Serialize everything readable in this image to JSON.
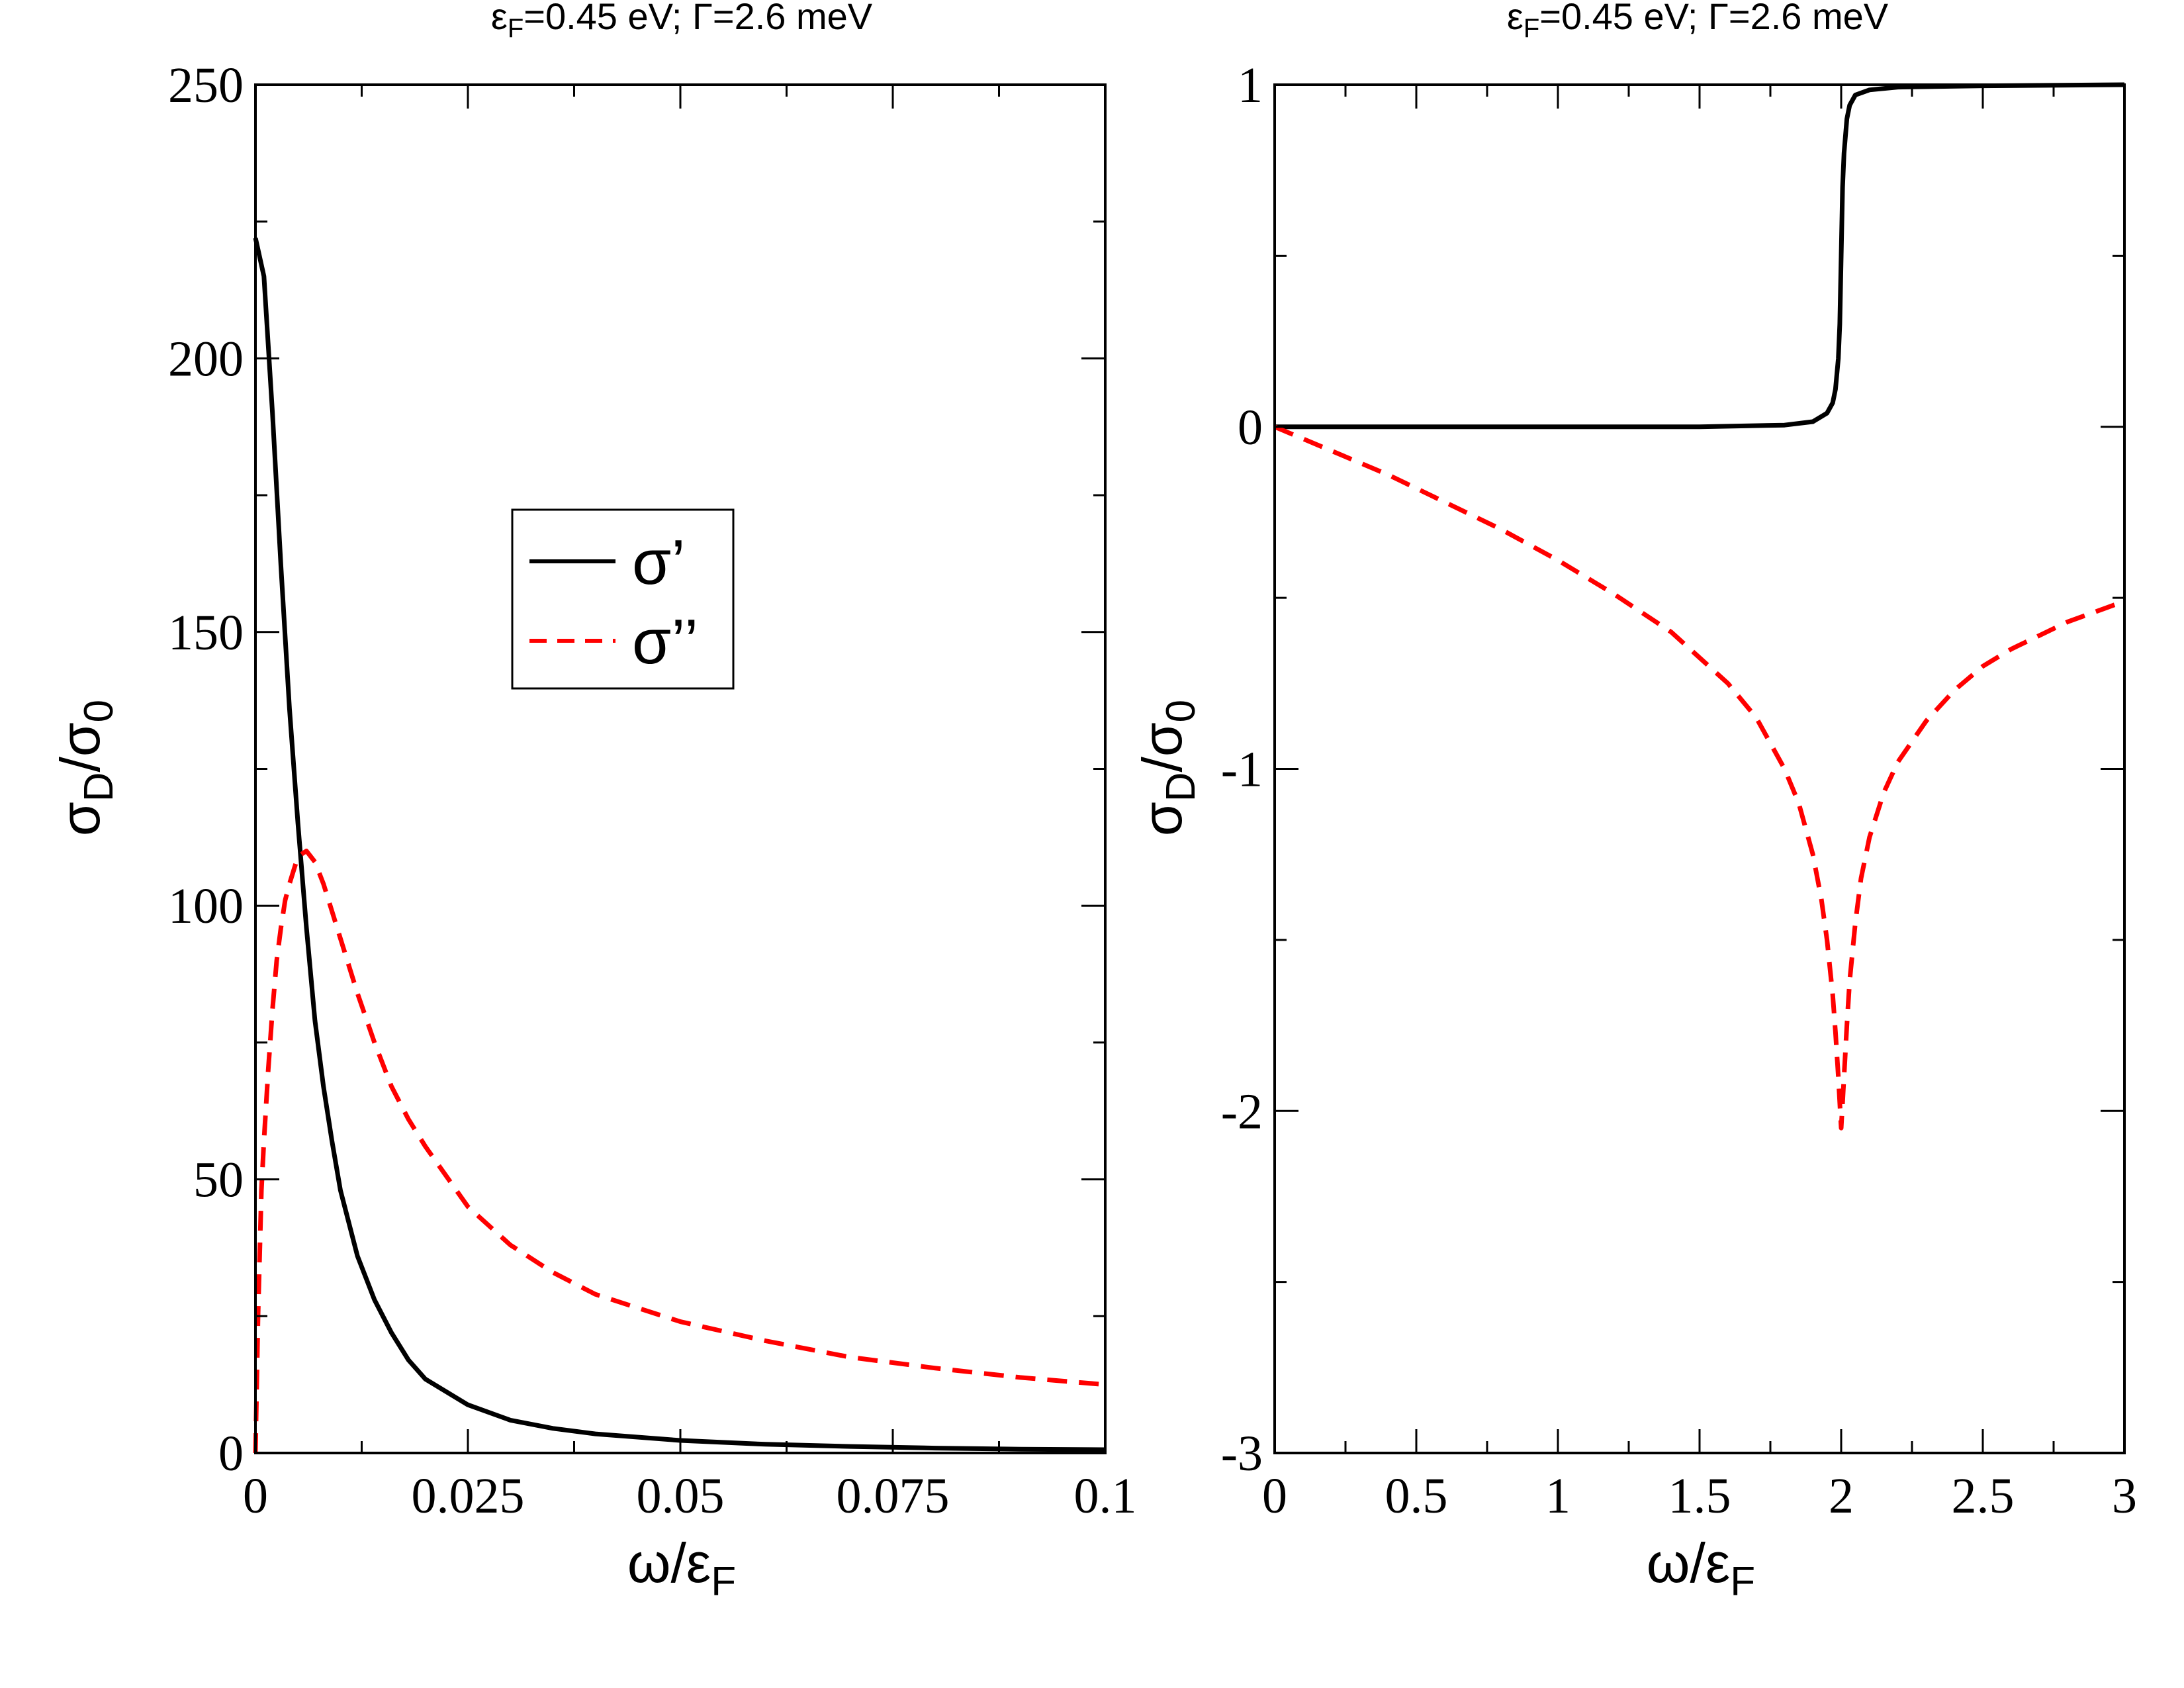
{
  "colors": {
    "sigma_real": "#000000",
    "sigma_imag": "#ff0000",
    "frame": "#000000",
    "background": "#ffffff"
  },
  "chart_data": [
    {
      "type": "line",
      "panel": "left",
      "title": {
        "eps": "ε",
        "eps_sub": "F",
        "rest": "=0.45 eV; Γ=2.6 meV"
      },
      "xlabel": {
        "main": "ω/ε",
        "sub": "F"
      },
      "ylabel": {
        "sig": "σ",
        "sub1": "D",
        "slash": "/σ",
        "sub2": "0"
      },
      "xlim": [
        0,
        0.1
      ],
      "ylim": [
        0,
        250
      ],
      "xticks": [
        0,
        0.025,
        0.05,
        0.075,
        0.1
      ],
      "xtick_labels": [
        "0",
        "0.025",
        "0.05",
        "0.075",
        "0.1"
      ],
      "xminor": [
        0.0125,
        0.0375,
        0.0625,
        0.0875
      ],
      "yticks": [
        0,
        50,
        100,
        150,
        200,
        250
      ],
      "ytick_labels": [
        "0",
        "50",
        "100",
        "150",
        "200",
        "250"
      ],
      "yminor": [
        25,
        75,
        125,
        175,
        225
      ],
      "legend": {
        "position": "center",
        "entries": [
          "σ’",
          "σ’’"
        ]
      },
      "series": [
        {
          "name": "σ'",
          "style": "solid",
          "x": [
            0,
            0.001,
            0.002,
            0.003,
            0.004,
            0.005,
            0.006,
            0.007,
            0.008,
            0.009,
            0.01,
            0.012,
            0.014,
            0.016,
            0.018,
            0.02,
            0.025,
            0.03,
            0.035,
            0.04,
            0.05,
            0.06,
            0.07,
            0.08,
            0.09,
            0.1
          ],
          "values": [
            222,
            215,
            190,
            162,
            136,
            115,
            96,
            79,
            67,
            57,
            48,
            36,
            28,
            22,
            17,
            13.5,
            8.8,
            6,
            4.5,
            3.5,
            2.3,
            1.6,
            1.2,
            0.9,
            0.7,
            0.6
          ]
        },
        {
          "name": "σ''",
          "style": "dashed",
          "x": [
            0,
            0.0003,
            0.0007,
            0.001,
            0.0015,
            0.002,
            0.0025,
            0.003,
            0.0035,
            0.004,
            0.005,
            0.006,
            0.007,
            0.008,
            0.009,
            0.01,
            0.012,
            0.014,
            0.016,
            0.018,
            0.02,
            0.025,
            0.03,
            0.035,
            0.04,
            0.05,
            0.06,
            0.07,
            0.08,
            0.09,
            0.1
          ],
          "values": [
            0,
            25,
            48,
            57,
            70,
            81,
            90,
            96,
            101,
            104,
            109,
            110,
            108,
            104,
            99,
            94,
            84,
            75,
            67,
            61,
            56,
            45,
            38,
            33,
            29,
            24,
            20.5,
            17.5,
            15.5,
            13.8,
            12.5
          ]
        }
      ]
    },
    {
      "type": "line",
      "panel": "right",
      "title": {
        "eps": "ε",
        "eps_sub": "F",
        "rest": "=0.45 eV; Γ=2.6 meV"
      },
      "xlabel": {
        "main": "ω/ε",
        "sub": "F"
      },
      "ylabel": {
        "sig": "σ",
        "sub1": "D",
        "slash": "/σ",
        "sub2": "0"
      },
      "xlim": [
        0,
        3
      ],
      "ylim": [
        -3,
        1
      ],
      "xticks": [
        0,
        0.5,
        1,
        1.5,
        2,
        2.5,
        3
      ],
      "xtick_labels": [
        "0",
        "0.5",
        "1",
        "1.5",
        "2",
        "2.5",
        "3"
      ],
      "xminor": [
        0.25,
        0.75,
        1.25,
        1.75,
        2.25,
        2.75
      ],
      "yticks": [
        -3,
        -2,
        -1,
        0,
        1
      ],
      "ytick_labels": [
        "-3",
        "-2",
        "-1",
        "0",
        "1"
      ],
      "yminor": [
        -2.5,
        -1.5,
        -0.5,
        0.5
      ],
      "series": [
        {
          "name": "σ'",
          "style": "solid",
          "x": [
            0,
            0.5,
            1,
            1.5,
            1.8,
            1.9,
            1.95,
            1.97,
            1.98,
            1.99,
            1.995,
            2,
            2.005,
            2.01,
            2.02,
            2.03,
            2.05,
            2.1,
            2.2,
            2.5,
            3
          ],
          "values": [
            0,
            0,
            0,
            0,
            0.005,
            0.015,
            0.04,
            0.07,
            0.11,
            0.2,
            0.3,
            0.5,
            0.7,
            0.8,
            0.9,
            0.94,
            0.97,
            0.985,
            0.993,
            0.997,
            1
          ]
        },
        {
          "name": "σ''",
          "style": "dashed",
          "x": [
            0,
            0.2,
            0.4,
            0.6,
            0.8,
            1,
            1.2,
            1.4,
            1.6,
            1.7,
            1.8,
            1.85,
            1.9,
            1.93,
            1.95,
            1.97,
            1.98,
            1.99,
            2,
            2.01,
            2.02,
            2.03,
            2.05,
            2.07,
            2.1,
            2.15,
            2.2,
            2.3,
            2.4,
            2.5,
            2.6,
            2.7,
            2.8,
            2.9,
            3
          ],
          "values": [
            0,
            -0.07,
            -0.14,
            -0.22,
            -0.3,
            -0.39,
            -0.49,
            -0.6,
            -0.75,
            -0.85,
            -1.0,
            -1.1,
            -1.25,
            -1.38,
            -1.5,
            -1.66,
            -1.77,
            -1.9,
            -2.05,
            -1.9,
            -1.75,
            -1.62,
            -1.45,
            -1.32,
            -1.2,
            -1.07,
            -0.98,
            -0.86,
            -0.77,
            -0.7,
            -0.65,
            -0.61,
            -0.57,
            -0.54,
            -0.51
          ]
        }
      ]
    }
  ]
}
